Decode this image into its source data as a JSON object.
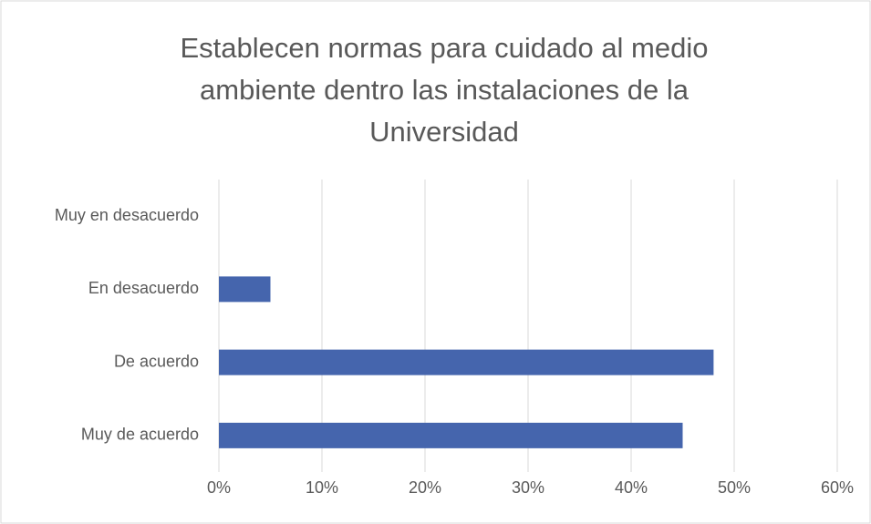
{
  "chart_data": {
    "type": "bar",
    "orientation": "horizontal",
    "title": "Establecen normas para cuidado al medio ambiente dentro las instalaciones de la Universidad",
    "categories": [
      "Muy en desacuerdo",
      "En desacuerdo",
      "De acuerdo",
      "Muy de acuerdo"
    ],
    "values": [
      0,
      5,
      48,
      45
    ],
    "color": "#4565ad",
    "xlim": [
      0,
      60
    ],
    "xticks": [
      {
        "value": 0,
        "label": "0%"
      },
      {
        "value": 10,
        "label": "10%"
      },
      {
        "value": 20,
        "label": "20%"
      },
      {
        "value": 30,
        "label": "30%"
      },
      {
        "value": 40,
        "label": "40%"
      },
      {
        "value": 50,
        "label": "50%"
      },
      {
        "value": 60,
        "label": "60%"
      }
    ],
    "grid": true
  }
}
